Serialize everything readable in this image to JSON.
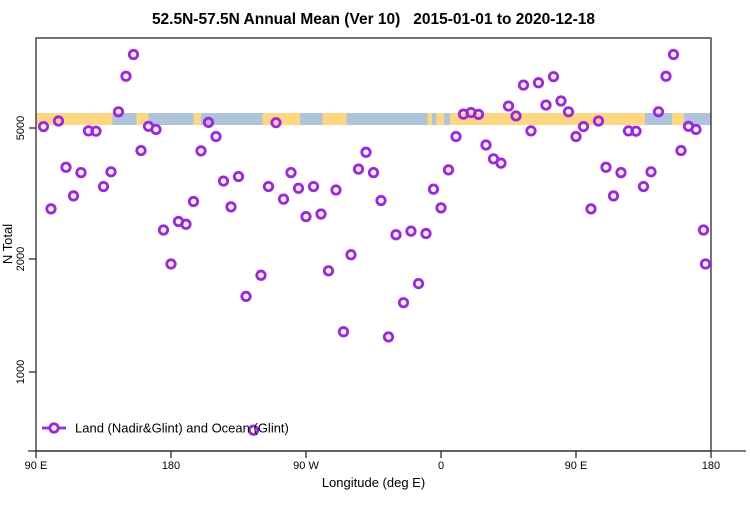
{
  "title": "52.5N-57.5N Annual Mean (Ver 10)   2015-01-01 to 2020-12-18",
  "colors": {
    "marker": "#A020F0",
    "land_band": "#FFD77E",
    "ocean_band": "#AEC3DC",
    "axis_line": "#2b2b2b",
    "background": "#ffffff"
  },
  "legend": {
    "label": "Land (Nadir&Glint) and Ocean (Glint)"
  },
  "chart_data": {
    "type": "scatter",
    "title": "52.5N-57.5N Annual Mean (Ver 10)   2015-01-01 to 2020-12-18",
    "xlabel": "Longitude (deg E)",
    "ylabel": "N Total",
    "y_scale": "log",
    "y_ticks": [
      1000,
      2000,
      5000
    ],
    "x_axis_deg_range": [
      90,
      540
    ],
    "x_tick_positions_deg": [
      90,
      180,
      270,
      360,
      450,
      540
    ],
    "x_tick_labels": [
      "90 E",
      "180",
      "90 W",
      "0",
      "90 E",
      "180"
    ],
    "x_axis_note": "axis wraps: 90E eastward around the globe to 180, first 90E-180 segment repeated at end",
    "series_name": "Land (Nadir&Glint) and Ocean (Glint)",
    "marker": "open-circle",
    "grid": false,
    "legend_position": "bottom-left",
    "points_format": [
      "axis_position_deg",
      "n_total"
    ],
    "points": [
      [
        95,
        5050
      ],
      [
        100,
        2840
      ],
      [
        105,
        5250
      ],
      [
        110,
        3800
      ],
      [
        115,
        3110
      ],
      [
        120,
        3660
      ],
      [
        125,
        4900
      ],
      [
        130,
        4890
      ],
      [
        135,
        3320
      ],
      [
        140,
        3680
      ],
      [
        145,
        5600
      ],
      [
        150,
        7180
      ],
      [
        155,
        8360
      ],
      [
        160,
        4270
      ],
      [
        165,
        5060
      ],
      [
        170,
        4950
      ],
      [
        175,
        2450
      ],
      [
        180,
        1940
      ],
      [
        185,
        2600
      ],
      [
        190,
        2550
      ],
      [
        195,
        2990
      ],
      [
        200,
        4260
      ],
      [
        205,
        5200
      ],
      [
        210,
        4710
      ],
      [
        215,
        3450
      ],
      [
        220,
        2880
      ],
      [
        225,
        3560
      ],
      [
        230,
        1590
      ],
      [
        235,
        700
      ],
      [
        240,
        1810
      ],
      [
        245,
        3320
      ],
      [
        250,
        5190
      ],
      [
        255,
        3040
      ],
      [
        260,
        3660
      ],
      [
        265,
        3280
      ],
      [
        270,
        2690
      ],
      [
        275,
        3320
      ],
      [
        280,
        2740
      ],
      [
        285,
        1860
      ],
      [
        290,
        3240
      ],
      [
        295,
        1280
      ],
      [
        300,
        2060
      ],
      [
        305,
        3750
      ],
      [
        310,
        4220
      ],
      [
        315,
        3660
      ],
      [
        320,
        3010
      ],
      [
        325,
        1240
      ],
      [
        330,
        2370
      ],
      [
        335,
        1530
      ],
      [
        340,
        2430
      ],
      [
        345,
        1720
      ],
      [
        350,
        2390
      ],
      [
        355,
        3260
      ],
      [
        360,
        2860
      ],
      [
        365,
        3730
      ],
      [
        370,
        4710
      ],
      [
        375,
        5510
      ],
      [
        380,
        5570
      ],
      [
        385,
        5500
      ],
      [
        390,
        4440
      ],
      [
        395,
        4030
      ],
      [
        400,
        3910
      ],
      [
        405,
        5830
      ],
      [
        410,
        5440
      ],
      [
        415,
        6750
      ],
      [
        420,
        4900
      ],
      [
        425,
        6860
      ],
      [
        430,
        5870
      ],
      [
        435,
        7160
      ],
      [
        440,
        6040
      ],
      [
        445,
        5600
      ],
      [
        450,
        4710
      ],
      [
        455,
        5050
      ],
      [
        460,
        2840
      ],
      [
        465,
        5250
      ],
      [
        470,
        3800
      ],
      [
        475,
        3110
      ],
      [
        480,
        3660
      ],
      [
        485,
        4900
      ],
      [
        490,
        4890
      ],
      [
        495,
        3320
      ],
      [
        500,
        3680
      ],
      [
        505,
        5600
      ],
      [
        510,
        7180
      ],
      [
        515,
        8360
      ],
      [
        520,
        4270
      ],
      [
        525,
        5060
      ],
      [
        530,
        4950
      ],
      [
        535,
        2450
      ],
      [
        540,
        1940
      ]
    ],
    "surface_band": {
      "n_value_approx": 5200,
      "description": "land/ocean strip along longitude",
      "segments_format": [
        "start_deg",
        "end_deg",
        "type"
      ],
      "segments": [
        [
          90,
          141,
          "land"
        ],
        [
          141,
          157,
          "ocean"
        ],
        [
          157,
          165,
          "land"
        ],
        [
          165,
          195,
          "ocean"
        ],
        [
          195,
          200,
          "land"
        ],
        [
          200,
          241,
          "ocean"
        ],
        [
          241,
          266,
          "land"
        ],
        [
          266,
          281,
          "ocean"
        ],
        [
          281,
          297,
          "land"
        ],
        [
          297,
          351,
          "ocean"
        ],
        [
          351,
          354,
          "land"
        ],
        [
          354,
          357,
          "ocean"
        ],
        [
          357,
          362,
          "land"
        ],
        [
          362,
          366,
          "ocean"
        ],
        [
          366,
          496,
          "land"
        ],
        [
          496,
          514,
          "ocean"
        ],
        [
          514,
          522,
          "land"
        ],
        [
          522,
          540,
          "ocean"
        ]
      ]
    }
  }
}
